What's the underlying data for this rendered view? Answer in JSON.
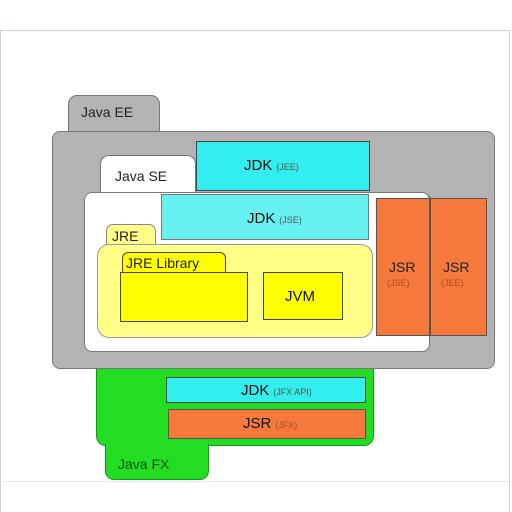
{
  "diagram": {
    "java_ee": {
      "label": "Java EE",
      "color": "#b3b3b3"
    },
    "java_se": {
      "label": "Java SE",
      "color": "#ffffff"
    },
    "java_fx": {
      "label": "Java FX",
      "color": "#22dd22"
    },
    "jdk_jee": {
      "main": "JDK",
      "sub": "(JEE)",
      "color": "#33eeee"
    },
    "jdk_jse": {
      "main": "JDK",
      "sub": "(JSE)",
      "color": "#66f0f0"
    },
    "jre": {
      "label": "JRE",
      "color": "#ffff88"
    },
    "jre_library": {
      "label": "JRE Library",
      "color": "#ffff00"
    },
    "jvm": {
      "label": "JVM",
      "color": "#ffff00"
    },
    "jsr_jse": {
      "main": "JSR",
      "sub": "(JSE)",
      "color": "#f4793b"
    },
    "jsr_jee": {
      "main": "JSR",
      "sub": "(JEE)",
      "color": "#f4793b"
    },
    "jdk_jfx": {
      "main": "JDK",
      "sub": "(JFX API)",
      "color": "#33eeee"
    },
    "jsr_jfx": {
      "main": "JSR",
      "sub": "(JFX)",
      "color": "#f4793b"
    }
  }
}
